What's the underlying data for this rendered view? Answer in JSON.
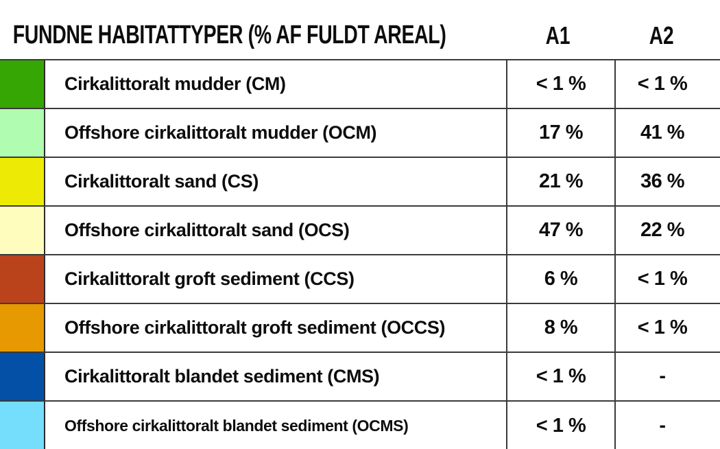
{
  "header": {
    "title": "FUNDNE HABITATTYPER (% AF FULDT AREAL)",
    "col_a1": "A1",
    "col_a2": "A2"
  },
  "table": {
    "rows": [
      {
        "color": "#35a603",
        "habitat": "Cirkalittoralt mudder (CM)",
        "a1": "< 1 %",
        "a2": "< 1 %"
      },
      {
        "color": "#b0fcb0",
        "habitat": "Offshore cirkalittoralt mudder (OCM)",
        "a1": "17 %",
        "a2": "41 %"
      },
      {
        "color": "#edeb05",
        "habitat": "Cirkalittoralt sand (CS)",
        "a1": "21 %",
        "a2": "36 %"
      },
      {
        "color": "#fefdbd",
        "habitat": "Offshore cirkalittoralt sand (OCS)",
        "a1": "47 %",
        "a2": "22 %"
      },
      {
        "color": "#bb431c",
        "habitat": "Cirkalittoralt groft sediment (CCS)",
        "a1": "6 %",
        "a2": "< 1 %"
      },
      {
        "color": "#e69900",
        "habitat": "Offshore cirkalittoralt groft sediment (OCCS)",
        "a1": "8 %",
        "a2": "< 1 %"
      },
      {
        "color": "#0450a6",
        "habitat": "Cirkalittoralt blandet sediment (CMS)",
        "a1": "< 1 %",
        "a2": "-"
      },
      {
        "color": "#74defc",
        "habitat": "Offshore cirkalittoralt blandet sediment (OCMS)",
        "a1": "< 1 %",
        "a2": "-"
      }
    ]
  },
  "chart_data": {
    "type": "table",
    "title": "FUNDNE HABITATTYPER (% AF FULDT AREAL)",
    "categories": [
      "Cirkalittoralt mudder (CM)",
      "Offshore cirkalittoralt mudder (OCM)",
      "Cirkalittoralt sand (CS)",
      "Offshore cirkalittoralt sand (OCS)",
      "Cirkalittoralt groft sediment (CCS)",
      "Offshore cirkalittoralt groft sediment (OCCS)",
      "Cirkalittoralt blandet sediment (CMS)",
      "Offshore cirkalittoralt blandet sediment (OCMS)"
    ],
    "series": [
      {
        "name": "A1",
        "values": [
          "< 1 %",
          "17 %",
          "21 %",
          "47 %",
          "6 %",
          "8 %",
          "< 1 %",
          "< 1 %"
        ]
      },
      {
        "name": "A2",
        "values": [
          "< 1 %",
          "41 %",
          "36 %",
          "22 %",
          "< 1 %",
          "< 1 %",
          "-",
          "-"
        ]
      }
    ],
    "row_colors": [
      "#35a603",
      "#b0fcb0",
      "#edeb05",
      "#fefdbd",
      "#bb431c",
      "#e69900",
      "#0450a6",
      "#74defc"
    ],
    "legend_position": "left-swatch-column",
    "grid": true
  }
}
